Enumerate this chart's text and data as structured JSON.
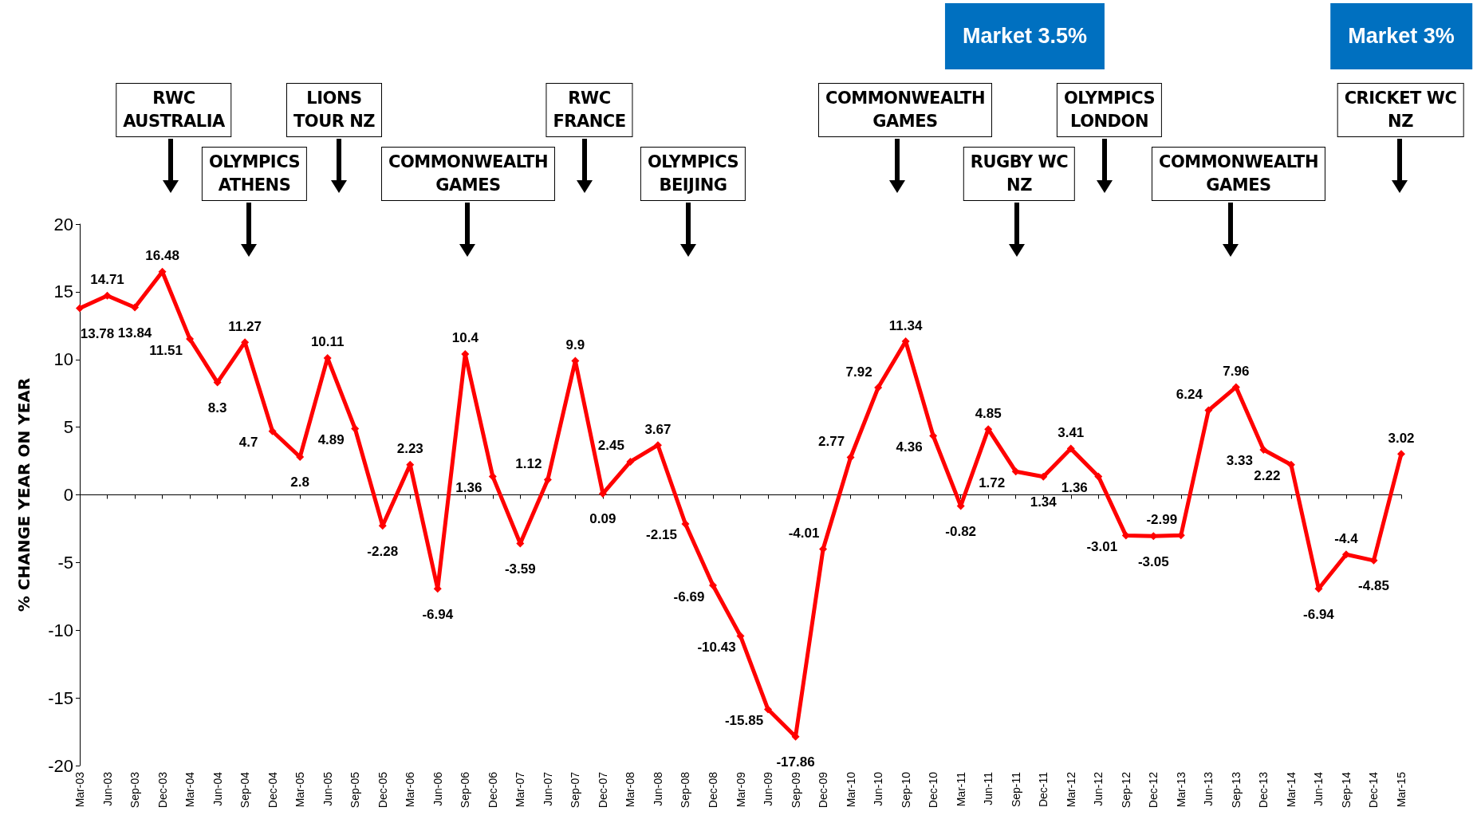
{
  "chart_data": {
    "type": "line",
    "ylabel": "% CHANGE YEAR ON YEAR",
    "categories": [
      "Mar-03",
      "Jun-03",
      "Sep-03",
      "Dec-03",
      "Mar-04",
      "Jun-04",
      "Sep-04",
      "Dec-04",
      "Mar-05",
      "Jun-05",
      "Sep-05",
      "Dec-05",
      "Mar-06",
      "Jun-06",
      "Sep-06",
      "Dec-06",
      "Mar-07",
      "Jun-07",
      "Sep-07",
      "Dec-07",
      "Mar-08",
      "Jun-08",
      "Sep-08",
      "Dec-08",
      "Mar-09",
      "Jun-09",
      "Sep-09",
      "Dec-09",
      "Mar-10",
      "Jun-10",
      "Sep-10",
      "Dec-10",
      "Mar-11",
      "Jun-11",
      "Sep-11",
      "Dec-11",
      "Mar-12",
      "Jun-12",
      "Sep-12",
      "Dec-12",
      "Mar-13",
      "Jun-13",
      "Sep-13",
      "Dec-13",
      "Mar-14",
      "Jun-14",
      "Sep-14",
      "Dec-14",
      "Mar-15"
    ],
    "series": [
      {
        "color": "#ff0000",
        "values": [
          13.78,
          14.71,
          13.84,
          16.48,
          11.51,
          8.3,
          11.27,
          4.7,
          2.8,
          10.11,
          4.89,
          -2.28,
          2.23,
          -6.94,
          10.4,
          1.36,
          -3.59,
          1.12,
          9.9,
          0.09,
          2.45,
          3.67,
          -2.15,
          -6.69,
          -10.43,
          -15.85,
          -17.86,
          -4.01,
          2.77,
          7.92,
          11.34,
          4.36,
          -0.82,
          4.85,
          1.72,
          1.34,
          3.41,
          1.36,
          -3.01,
          -3.05,
          -2.99,
          6.24,
          7.96,
          3.33,
          2.22,
          -6.94,
          -4.4,
          -4.85,
          3.02
        ]
      }
    ],
    "ylim": [
      -20,
      20
    ],
    "yticks": [
      -20,
      -15,
      -10,
      -5,
      0,
      5,
      10,
      15,
      20
    ],
    "marker": "diamond",
    "line_style": "solid",
    "data_labels": true,
    "annotations": [
      "RWC\nAUSTRALIA",
      "OLYMPICS\nATHENS",
      "LIONS\nTOUR NZ",
      "COMMONWEALTH\nGAMES",
      "RWC\nFRANCE",
      "OLYMPICS\nBEIJING",
      "COMMONWEALTH\nGAMES",
      "RUGBY WC\nNZ",
      "OLYMPICS\nLONDON",
      "COMMONWEALTH\nGAMES",
      "CRICKET WC\nNZ",
      "Market 3.5%",
      "Market 3%"
    ]
  }
}
